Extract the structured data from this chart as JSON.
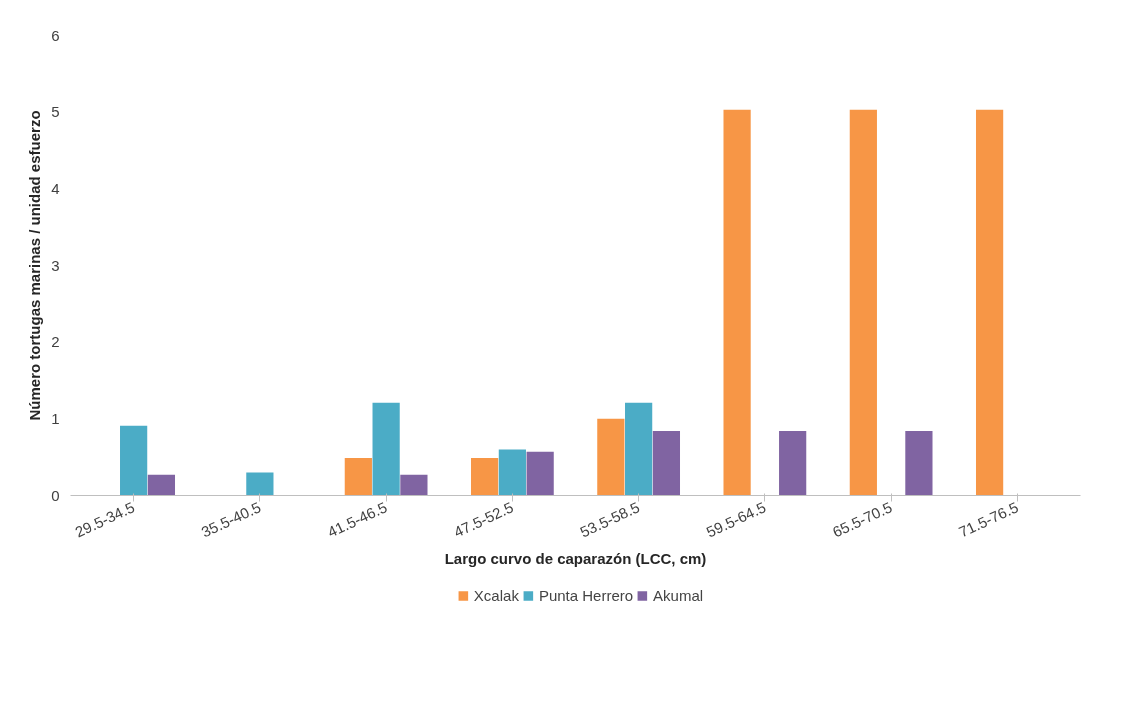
{
  "chart_data": {
    "type": "bar",
    "xlabel": "Largo curvo de caparazón (LCC, cm)",
    "ylabel": "Número tortugas marinas / unidad esfuerzo",
    "categories": [
      "29.5-34.5",
      "35.5-40.5",
      "41.5-46.5",
      "47.5-52.5",
      "53.5-58.5",
      "59.5-64.5",
      "65.5-70.5",
      "71.5-76.5"
    ],
    "series": [
      {
        "name": "Xcalak",
        "color": "#f79646",
        "values": [
          null,
          null,
          0.49,
          0.49,
          1.0,
          5.03,
          5.03,
          5.03
        ]
      },
      {
        "name": "Punta Herrero",
        "color": "#4bacc6",
        "values": [
          0.91,
          0.3,
          1.21,
          0.6,
          1.21,
          null,
          null,
          null
        ]
      },
      {
        "name": "Akumal",
        "color": "#8064a2",
        "values": [
          0.27,
          null,
          0.27,
          0.57,
          0.84,
          0.84,
          0.84,
          null
        ]
      }
    ],
    "ylim": [
      0,
      6
    ],
    "yticks": [
      0,
      1,
      2,
      3,
      4,
      5,
      6
    ],
    "grid": false,
    "legend": "bottom"
  }
}
